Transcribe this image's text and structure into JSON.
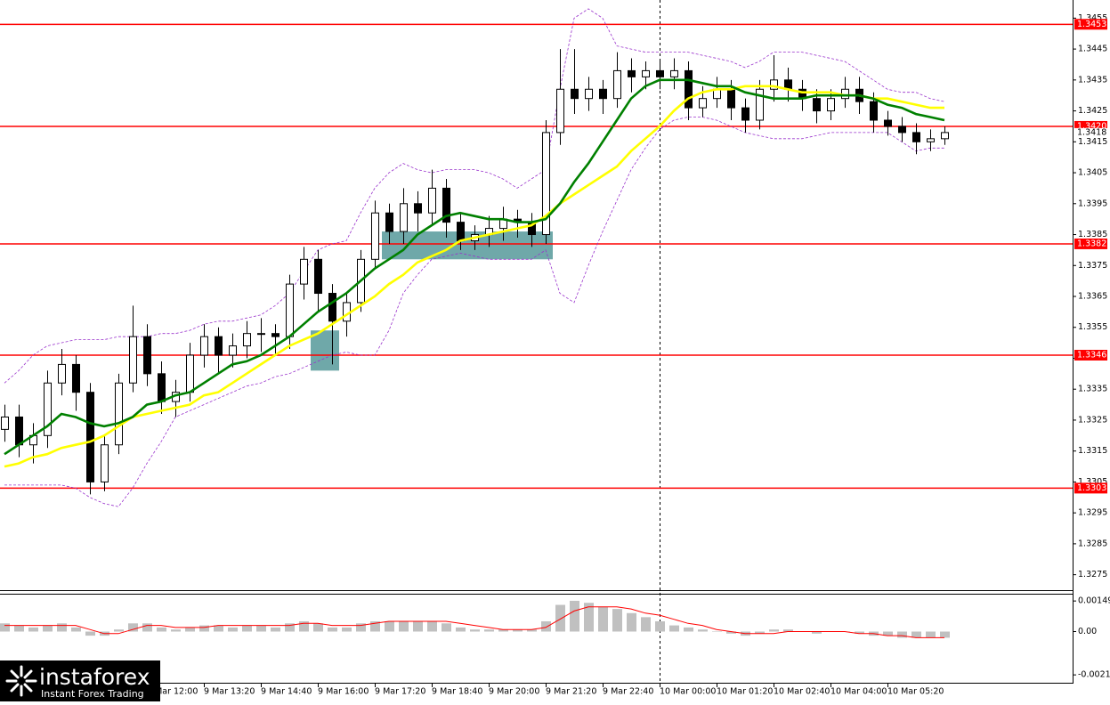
{
  "chart_data": {
    "type": "candlestick",
    "categories": [
      null,
      null,
      null,
      null,
      null,
      null,
      null,
      null,
      null,
      null,
      "9 Mar 12:00",
      null,
      null,
      null,
      "9 Mar 13:20",
      null,
      null,
      null,
      "9 Mar 14:40",
      null,
      null,
      null,
      "9 Mar 16:00",
      null,
      null,
      null,
      "9 Mar 17:20",
      null,
      null,
      null,
      "9 Mar 18:40",
      null,
      null,
      null,
      "9 Mar 20:00",
      null,
      null,
      null,
      "9 Mar 21:20",
      null,
      null,
      null,
      "9 Mar 22:40",
      null,
      null,
      null,
      "10 Mar 00:00",
      null,
      null,
      null,
      "10 Mar 01:20",
      null,
      null,
      null,
      "10 Mar 02:40",
      null,
      null,
      null,
      "10 Mar 04:00",
      null,
      null,
      null,
      "10 Mar 05:20",
      null,
      null,
      null,
      null
    ],
    "open": [
      1.3322,
      1.3326,
      1.3317,
      1.332,
      1.3337,
      1.3343,
      1.3334,
      1.3305,
      1.3317,
      1.3337,
      1.3352,
      1.334,
      1.3331,
      1.3334,
      1.3346,
      1.3352,
      1.3346,
      1.3349,
      1.3353,
      1.3353,
      1.3352,
      1.3369,
      1.3377,
      1.3366,
      1.3357,
      1.3363,
      1.3377,
      1.3392,
      1.3386,
      1.3395,
      1.3392,
      1.34,
      1.3389,
      1.3383,
      1.3385,
      1.3387,
      1.339,
      1.3389,
      1.3385,
      1.3418,
      1.3432,
      1.3429,
      1.3432,
      1.3429,
      1.3438,
      1.3436,
      1.3438,
      1.3436,
      1.3438,
      1.3426,
      1.3429,
      1.3432,
      1.3426,
      1.3422,
      1.3432,
      1.3435,
      1.3432,
      1.3429,
      1.3425,
      1.3429,
      1.3432,
      1.3428,
      1.3422,
      1.342,
      1.3418,
      1.3415,
      1.3416
    ],
    "high": [
      1.333,
      1.333,
      1.3324,
      1.3341,
      1.3348,
      1.3346,
      1.3337,
      1.332,
      1.334,
      1.3362,
      1.3356,
      1.3344,
      1.3338,
      1.335,
      1.3356,
      1.3355,
      1.3353,
      1.3357,
      1.3358,
      1.3356,
      1.3372,
      1.3381,
      1.338,
      1.3369,
      1.3366,
      1.338,
      1.3396,
      1.3395,
      1.34,
      1.3399,
      1.3406,
      1.3403,
      1.3392,
      1.3388,
      1.3391,
      1.3394,
      1.3393,
      1.3392,
      1.3422,
      1.3445,
      1.3445,
      1.3436,
      1.3435,
      1.3444,
      1.3442,
      1.3441,
      1.3441,
      1.3442,
      1.3441,
      1.3433,
      1.3436,
      1.3435,
      1.3429,
      1.3435,
      1.3443,
      1.3439,
      1.3435,
      1.3432,
      1.3432,
      1.3436,
      1.3436,
      1.3431,
      1.3425,
      1.3423,
      1.3421,
      1.3419,
      1.342
    ],
    "low": [
      1.3318,
      1.3313,
      1.3311,
      1.3316,
      1.3333,
      1.3328,
      1.3301,
      1.3302,
      1.3314,
      1.3334,
      1.3336,
      1.3327,
      1.3326,
      1.3331,
      1.3342,
      1.334,
      1.3342,
      1.3345,
      1.3347,
      1.3346,
      1.3348,
      1.3364,
      1.336,
      1.3343,
      1.3352,
      1.336,
      1.3374,
      1.3382,
      1.3382,
      1.3386,
      1.3388,
      1.3384,
      1.338,
      1.338,
      1.3381,
      1.3383,
      1.3384,
      1.3381,
      1.3382,
      1.3414,
      1.3424,
      1.3425,
      1.3424,
      1.3426,
      1.3431,
      1.3432,
      1.3432,
      1.3432,
      1.3422,
      1.3423,
      1.3426,
      1.3422,
      1.3418,
      1.3419,
      1.3428,
      1.3428,
      1.3425,
      1.3421,
      1.3422,
      1.3426,
      1.3424,
      1.3418,
      1.3417,
      1.3415,
      1.3411,
      1.3412,
      1.3414
    ],
    "close": [
      1.3326,
      1.3317,
      1.332,
      1.3337,
      1.3343,
      1.3334,
      1.3305,
      1.3317,
      1.3337,
      1.3352,
      1.334,
      1.3331,
      1.3334,
      1.3346,
      1.3352,
      1.3346,
      1.3349,
      1.3353,
      1.3353,
      1.3352,
      1.3369,
      1.3377,
      1.3366,
      1.3357,
      1.3363,
      1.3377,
      1.3392,
      1.3386,
      1.3395,
      1.3392,
      1.34,
      1.3389,
      1.3383,
      1.3385,
      1.3387,
      1.339,
      1.3389,
      1.3385,
      1.3418,
      1.3432,
      1.3429,
      1.3432,
      1.3429,
      1.3438,
      1.3436,
      1.3438,
      1.3436,
      1.3438,
      1.3426,
      1.3429,
      1.3432,
      1.3426,
      1.3422,
      1.3432,
      1.3435,
      1.3432,
      1.3429,
      1.3425,
      1.3429,
      1.3432,
      1.3428,
      1.3422,
      1.342,
      1.3418,
      1.3415,
      1.3416,
      1.3418
    ],
    "ylim": [
      1.327,
      1.346
    ],
    "yticks": [
      1.3455,
      1.3445,
      1.3435,
      1.3425,
      1.3415,
      1.3405,
      1.3395,
      1.3385,
      1.3375,
      1.3365,
      1.3355,
      1.3345,
      1.3335,
      1.3325,
      1.3315,
      1.3305,
      1.3295,
      1.3285,
      1.3275
    ],
    "lines": [
      {
        "color": "#ffff00",
        "values": [
          1.331,
          1.3311,
          1.3313,
          1.3314,
          1.3316,
          1.3317,
          1.3318,
          1.332,
          1.3323,
          1.3326,
          1.3327,
          1.3328,
          1.3329,
          1.333,
          1.3333,
          1.3334,
          1.3337,
          1.334,
          1.3343,
          1.3346,
          1.3349,
          1.3351,
          1.3353,
          1.3356,
          1.3359,
          1.3362,
          1.3365,
          1.3369,
          1.3372,
          1.3376,
          1.3378,
          1.338,
          1.3383,
          1.3384,
          1.3385,
          1.3386,
          1.3387,
          1.3388,
          1.3391,
          1.3395,
          1.3398,
          1.3401,
          1.3404,
          1.3407,
          1.3412,
          1.3416,
          1.342,
          1.3425,
          1.3429,
          1.3431,
          1.3432,
          1.3432,
          1.3433,
          1.3433,
          1.3433,
          1.3432,
          1.3431,
          1.3431,
          1.3431,
          1.343,
          1.343,
          1.3429,
          1.3429,
          1.3428,
          1.3427,
          1.3426,
          1.3426
        ]
      },
      {
        "color": "#008000",
        "values": [
          1.3314,
          1.3317,
          1.332,
          1.3323,
          1.3327,
          1.3326,
          1.3324,
          1.3323,
          1.3324,
          1.3326,
          1.333,
          1.3331,
          1.3333,
          1.3334,
          1.3337,
          1.334,
          1.3343,
          1.3344,
          1.3346,
          1.3349,
          1.3352,
          1.3356,
          1.336,
          1.3363,
          1.3366,
          1.337,
          1.3374,
          1.3377,
          1.338,
          1.3385,
          1.3388,
          1.3391,
          1.3392,
          1.3391,
          1.339,
          1.339,
          1.3389,
          1.3389,
          1.339,
          1.3395,
          1.3402,
          1.3408,
          1.3415,
          1.3422,
          1.3429,
          1.3433,
          1.3435,
          1.3435,
          1.3435,
          1.3434,
          1.3433,
          1.3433,
          1.3431,
          1.343,
          1.3429,
          1.3429,
          1.3429,
          1.343,
          1.343,
          1.343,
          1.343,
          1.3429,
          1.3427,
          1.3426,
          1.3424,
          1.3423,
          1.3422
        ]
      }
    ],
    "bands": {
      "color": "#9932cc",
      "upper": [
        1.3337,
        1.3341,
        1.3346,
        1.3349,
        1.335,
        1.3351,
        1.3351,
        1.3351,
        1.3352,
        1.3352,
        1.3352,
        1.3353,
        1.3353,
        1.3354,
        1.3356,
        1.3357,
        1.3357,
        1.3358,
        1.3359,
        1.3362,
        1.3366,
        1.3373,
        1.338,
        1.3382,
        1.3383,
        1.3392,
        1.34,
        1.3405,
        1.3408,
        1.3406,
        1.3405,
        1.3406,
        1.3406,
        1.3406,
        1.3405,
        1.3403,
        1.34,
        1.3403,
        1.3406,
        1.3432,
        1.3455,
        1.3458,
        1.3455,
        1.3446,
        1.3445,
        1.3444,
        1.3444,
        1.3444,
        1.3444,
        1.3443,
        1.3442,
        1.3441,
        1.3439,
        1.3441,
        1.3444,
        1.3444,
        1.3444,
        1.3443,
        1.3442,
        1.3441,
        1.3438,
        1.3435,
        1.3432,
        1.3431,
        1.3431,
        1.3429,
        1.3428
      ],
      "lower": [
        1.3304,
        1.3304,
        1.3304,
        1.3304,
        1.3304,
        1.3303,
        1.33,
        1.3298,
        1.3297,
        1.3303,
        1.3311,
        1.3318,
        1.3326,
        1.3328,
        1.333,
        1.3332,
        1.3334,
        1.3336,
        1.3337,
        1.3339,
        1.334,
        1.3342,
        1.3344,
        1.3346,
        1.3347,
        1.3346,
        1.3346,
        1.3354,
        1.3366,
        1.3372,
        1.3377,
        1.3378,
        1.3379,
        1.3378,
        1.3377,
        1.3377,
        1.3377,
        1.3377,
        1.338,
        1.3366,
        1.3363,
        1.3375,
        1.3386,
        1.3396,
        1.3406,
        1.3413,
        1.3419,
        1.3422,
        1.3423,
        1.3423,
        1.3422,
        1.342,
        1.3418,
        1.3417,
        1.3416,
        1.3416,
        1.3416,
        1.3417,
        1.3418,
        1.3418,
        1.3418,
        1.3418,
        1.3418,
        1.3415,
        1.3412,
        1.3413,
        1.3413
      ]
    },
    "levels": {
      "color": "#ff0000",
      "values": [
        1.3453,
        1.342,
        1.3382,
        1.3346,
        1.3303
      ],
      "value_labels": [
        "1.3453",
        "1.3420",
        "1.3382",
        "1.3346",
        "1.3303"
      ]
    },
    "zones": {
      "color": "#5f9ea0",
      "items": [
        {
          "start": 22,
          "end": 23,
          "from": 1.3341,
          "to": 1.3354
        },
        {
          "start": 27,
          "end": 38,
          "from": 1.3377,
          "to": 1.3386
        }
      ]
    },
    "indicator": {
      "type": "macd",
      "histogram_color": "#c0c0c0",
      "signal_color": "#ff0000",
      "histogram": [
        0.0004,
        0.0003,
        0.0002,
        0.0003,
        0.0004,
        0.0002,
        -0.0002,
        -0.0002,
        0.0001,
        0.0004,
        0.0004,
        0.0002,
        0.0001,
        0.0002,
        0.0003,
        0.0003,
        0.0002,
        0.0003,
        0.0003,
        0.0002,
        0.0004,
        0.0005,
        0.0004,
        0.0002,
        0.0002,
        0.0004,
        0.0005,
        0.0005,
        0.0005,
        0.0005,
        0.0005,
        0.0004,
        0.0002,
        0.0001,
        0.0001,
        0.0001,
        0.0001,
        0.0001,
        0.0005,
        0.0013,
        0.0015,
        0.0014,
        0.0012,
        0.0011,
        0.0009,
        0.0007,
        0.0005,
        0.0003,
        0.0002,
        0.0001,
        0,
        -0.0001,
        -0.0002,
        -0.0001,
        0.0001,
        0.0001,
        0,
        -0.0001,
        0,
        0,
        -0.0001,
        -0.0002,
        -0.0002,
        -0.0003,
        -0.0003,
        -0.0003,
        -0.0003
      ],
      "signal": [
        0.0003,
        0.0003,
        0.0003,
        0.0003,
        0.0003,
        0.0003,
        0.0001,
        -0.0001,
        -0.0001,
        0.0001,
        0.0003,
        0.0003,
        0.0002,
        0.0002,
        0.0002,
        0.0003,
        0.0003,
        0.0003,
        0.0003,
        0.0003,
        0.0003,
        0.0004,
        0.0004,
        0.0003,
        0.0003,
        0.0003,
        0.0004,
        0.0005,
        0.0005,
        0.0005,
        0.0005,
        0.0005,
        0.0004,
        0.0003,
        0.0002,
        0.0001,
        0.0001,
        0.0001,
        0.0002,
        0.0006,
        0.001,
        0.0012,
        0.0012,
        0.0012,
        0.0011,
        0.0009,
        0.0008,
        0.0006,
        0.0004,
        0.0003,
        0.0001,
        0,
        -0.0001,
        -0.0001,
        -0.0001,
        0,
        0,
        0,
        0,
        0,
        -0.0001,
        -0.0001,
        -0.0002,
        -0.0002,
        -0.0003,
        -0.0003,
        -0.0003
      ],
      "ylim": [
        -0.00245,
        0.0018
      ],
      "yticks": [
        0.00149,
        {
          "value": 0,
          "label": "0.00"
        },
        -0.00211
      ]
    },
    "logo": {
      "name": "instaforex",
      "tagline": "Instant Forex Trading"
    }
  }
}
